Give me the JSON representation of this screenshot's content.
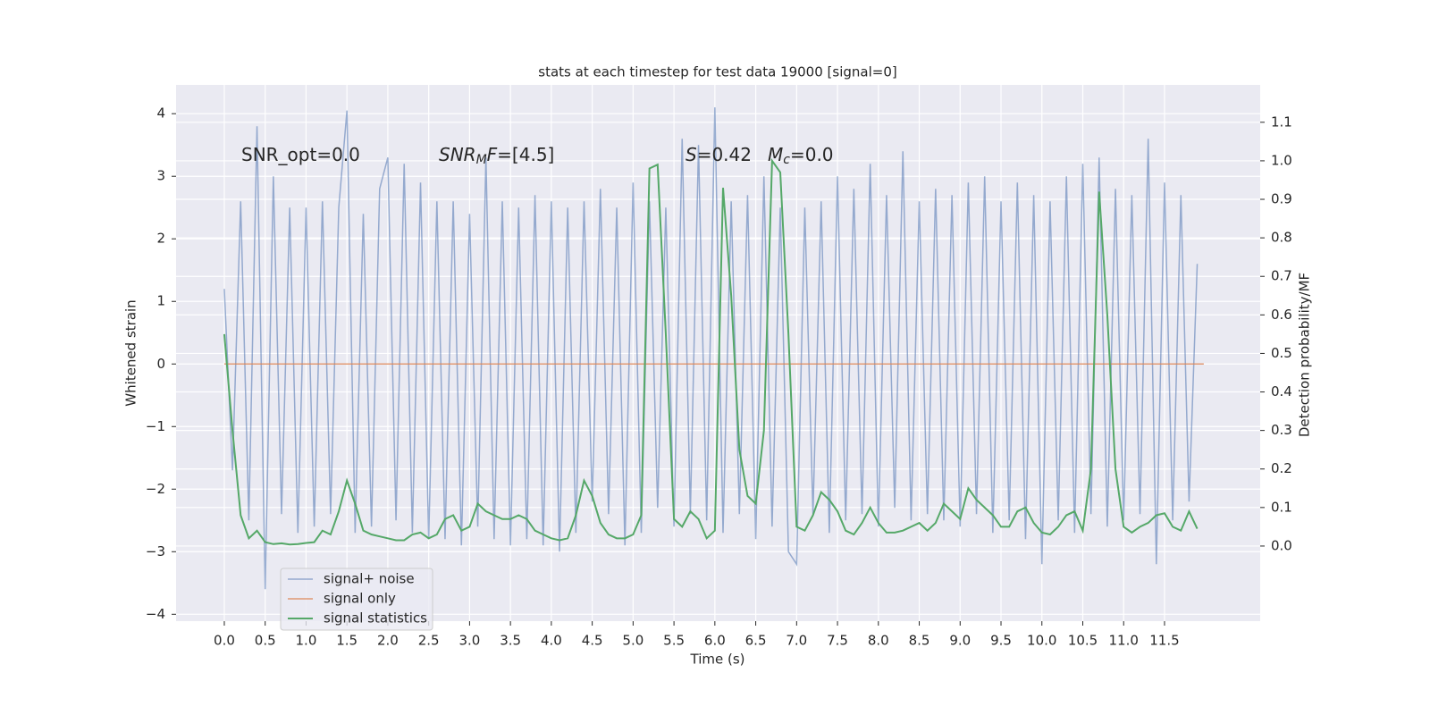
{
  "chart_data": {
    "type": "line",
    "title": "stats at each timestep for test data 19000 [signal=0]",
    "xlabel": "Time (s)",
    "ylabel": "Whitened strain",
    "y2label": "Detection probability/MF",
    "annotations": [
      [
        "SNR_opt=0.0"
      ],
      [
        "SNR",
        "M",
        "F",
        "=[4.5]"
      ],
      [
        "S",
        "=0.42"
      ],
      [
        "M",
        "c",
        "=0.0"
      ]
    ],
    "xlim": [
      -0.59,
      12.67
    ],
    "ylim": [
      -4.11,
      4.46
    ],
    "y2lim": [
      -0.195,
      1.197
    ],
    "xticks": [
      {
        "value": 0,
        "label": "0.0"
      },
      {
        "value": 0.5,
        "label": "0.5"
      },
      {
        "value": 1,
        "label": "1.0"
      },
      {
        "value": 1.5,
        "label": "1.5"
      },
      {
        "value": 2,
        "label": "2.0"
      },
      {
        "value": 2.5,
        "label": "2.5"
      },
      {
        "value": 3,
        "label": "3.0"
      },
      {
        "value": 3.5,
        "label": "3.5"
      },
      {
        "value": 4,
        "label": "4.0"
      },
      {
        "value": 4.5,
        "label": "4.5"
      },
      {
        "value": 5,
        "label": "5.0"
      },
      {
        "value": 5.5,
        "label": "5.5"
      },
      {
        "value": 6,
        "label": "6.0"
      },
      {
        "value": 6.5,
        "label": "6.5"
      },
      {
        "value": 7,
        "label": "7.0"
      },
      {
        "value": 7.5,
        "label": "7.5"
      },
      {
        "value": 8,
        "label": "8.0"
      },
      {
        "value": 8.5,
        "label": "8.5"
      },
      {
        "value": 9,
        "label": "9.0"
      },
      {
        "value": 9.5,
        "label": "9.5"
      },
      {
        "value": 10,
        "label": "10.0"
      },
      {
        "value": 10.5,
        "label": "10.5"
      },
      {
        "value": 11,
        "label": "11.0"
      },
      {
        "value": 11.5,
        "label": "11.5"
      }
    ],
    "yticks": [
      {
        "value": -4,
        "label": "−4"
      },
      {
        "value": -3,
        "label": "−3"
      },
      {
        "value": -2,
        "label": "−2"
      },
      {
        "value": -1,
        "label": "−1"
      },
      0,
      1,
      2,
      3,
      4
    ],
    "y2ticks": [
      {
        "value": 0,
        "label": "0.0"
      },
      {
        "value": 0.1,
        "label": "0.1"
      },
      {
        "value": 0.2,
        "label": "0.2"
      },
      {
        "value": 0.3,
        "label": "0.3"
      },
      {
        "value": 0.4,
        "label": "0.4"
      },
      {
        "value": 0.5,
        "label": "0.5"
      },
      {
        "value": 0.6,
        "label": "0.6"
      },
      {
        "value": 0.7,
        "label": "0.7"
      },
      {
        "value": 0.8,
        "label": "0.8"
      },
      {
        "value": 0.9,
        "label": "0.9"
      },
      {
        "value": 1.0,
        "label": "1.0"
      },
      {
        "value": 1.1,
        "label": "1.1"
      }
    ],
    "grid": true,
    "legend": "lower left",
    "series": [
      {
        "name": "signal+ noise",
        "color": "#4c72b0",
        "x": [
          0,
          0.1,
          0.2,
          0.3,
          0.4,
          0.5,
          0.6,
          0.7,
          0.8,
          0.9,
          1,
          1.1,
          1.2,
          1.3,
          1.4,
          1.5,
          1.6,
          1.7,
          1.8,
          1.9,
          2,
          2.1,
          2.2,
          2.3,
          2.4,
          2.5,
          2.6,
          2.7,
          2.8,
          2.9,
          3,
          3.1,
          3.2,
          3.3,
          3.4,
          3.5,
          3.6,
          3.7,
          3.8,
          3.9,
          4,
          4.1,
          4.2,
          4.3,
          4.4,
          4.5,
          4.6,
          4.7,
          4.8,
          4.9,
          5,
          5.1,
          5.2,
          5.3,
          5.4,
          5.5,
          5.6,
          5.7,
          5.8,
          5.9,
          6,
          6.1,
          6.2,
          6.3,
          6.4,
          6.5,
          6.6,
          6.7,
          6.8,
          6.9,
          7,
          7.1,
          7.2,
          7.3,
          7.4,
          7.5,
          7.6,
          7.7,
          7.8,
          7.9,
          8,
          8.1,
          8.2,
          8.3,
          8.4,
          8.5,
          8.6,
          8.7,
          8.8,
          8.9,
          9,
          9.1,
          9.2,
          9.3,
          9.4,
          9.5,
          9.6,
          9.7,
          9.8,
          9.9,
          10,
          10.1,
          10.2,
          10.3,
          10.4,
          10.5,
          10.6,
          10.7,
          10.8,
          10.9,
          11,
          11.1,
          11.2,
          11.3,
          11.4,
          11.5,
          11.6,
          11.7,
          11.8,
          11.9
        ],
        "values": [
          1.2,
          -1.7,
          2.6,
          -2.5,
          3.8,
          -3.6,
          3.0,
          -2.4,
          2.5,
          -2.7,
          2.5,
          -2.6,
          2.6,
          -2.4,
          2.5,
          4.05,
          -2.7,
          2.4,
          -2.6,
          2.8,
          3.3,
          -2.5,
          3.2,
          -2.7,
          2.9,
          -2.8,
          2.6,
          -2.8,
          2.6,
          -2.9,
          2.4,
          -2.6,
          3.3,
          -2.8,
          2.6,
          -2.9,
          2.5,
          -2.8,
          2.7,
          -2.9,
          2.6,
          -3.0,
          2.5,
          -2.7,
          2.6,
          -2.2,
          2.8,
          -2.4,
          2.5,
          -2.9,
          2.9,
          -2.7,
          2.6,
          -2.3,
          2.5,
          -2.6,
          3.6,
          -2.4,
          3.5,
          -2.5,
          4.1,
          -2.7,
          2.6,
          -2.4,
          2.7,
          -2.8,
          3.0,
          -2.6,
          2.5,
          -3.0,
          -3.2,
          2.5,
          -2.4,
          2.6,
          -2.7,
          3.0,
          -2.5,
          2.8,
          -2.4,
          3.2,
          -2.6,
          2.7,
          -2.3,
          3.4,
          -2.5,
          2.6,
          -2.4,
          2.8,
          -2.5,
          2.7,
          -2.6,
          2.9,
          -2.4,
          3.0,
          -2.7,
          2.6,
          -2.5,
          2.9,
          -2.8,
          2.7,
          -3.2,
          2.6,
          -2.5,
          3.0,
          -2.7,
          3.2,
          -2.4,
          3.3,
          -2.6,
          2.8,
          -2.5,
          2.7,
          -2.4,
          3.6,
          -3.2,
          2.9,
          -2.5,
          2.7,
          -2.2,
          1.6
        ]
      },
      {
        "name": "signal only",
        "color": "#dd8452",
        "x": [
          0,
          11.98
        ],
        "values": [
          0,
          0
        ]
      },
      {
        "name": "signal statistics",
        "color": "#55a868",
        "axis": "y2",
        "x": [
          0,
          0.1,
          0.2,
          0.3,
          0.4,
          0.5,
          0.6,
          0.7,
          0.8,
          0.9,
          1,
          1.1,
          1.2,
          1.3,
          1.4,
          1.5,
          1.6,
          1.7,
          1.8,
          1.9,
          2,
          2.1,
          2.2,
          2.3,
          2.4,
          2.5,
          2.6,
          2.7,
          2.8,
          2.9,
          3,
          3.1,
          3.2,
          3.3,
          3.4,
          3.5,
          3.6,
          3.7,
          3.8,
          3.9,
          4,
          4.1,
          4.2,
          4.3,
          4.4,
          4.5,
          4.6,
          4.7,
          4.8,
          4.9,
          5,
          5.1,
          5.2,
          5.3,
          5.4,
          5.5,
          5.6,
          5.7,
          5.8,
          5.9,
          6,
          6.1,
          6.2,
          6.3,
          6.4,
          6.5,
          6.6,
          6.7,
          6.8,
          6.9,
          7,
          7.1,
          7.2,
          7.3,
          7.4,
          7.5,
          7.6,
          7.7,
          7.8,
          7.9,
          8,
          8.1,
          8.2,
          8.3,
          8.4,
          8.5,
          8.6,
          8.7,
          8.8,
          8.9,
          9,
          9.1,
          9.2,
          9.3,
          9.4,
          9.5,
          9.6,
          9.7,
          9.8,
          9.9,
          10,
          10.1,
          10.2,
          10.3,
          10.4,
          10.5,
          10.6,
          10.7,
          10.8,
          10.9,
          11,
          11.1,
          11.2,
          11.3,
          11.4,
          11.5,
          11.6,
          11.7,
          11.8,
          11.9
        ],
        "values": [
          0.55,
          0.3,
          0.08,
          0.02,
          0.04,
          0.01,
          0.005,
          0.007,
          0.004,
          0.005,
          0.008,
          0.01,
          0.04,
          0.03,
          0.09,
          0.17,
          0.11,
          0.04,
          0.03,
          0.025,
          0.02,
          0.015,
          0.015,
          0.03,
          0.035,
          0.02,
          0.03,
          0.07,
          0.08,
          0.04,
          0.05,
          0.11,
          0.09,
          0.08,
          0.07,
          0.07,
          0.08,
          0.07,
          0.04,
          0.03,
          0.02,
          0.015,
          0.02,
          0.08,
          0.17,
          0.13,
          0.06,
          0.03,
          0.02,
          0.02,
          0.03,
          0.08,
          0.98,
          0.99,
          0.55,
          0.07,
          0.05,
          0.09,
          0.07,
          0.02,
          0.04,
          0.93,
          0.65,
          0.25,
          0.13,
          0.11,
          0.3,
          1.0,
          0.97,
          0.55,
          0.05,
          0.04,
          0.08,
          0.14,
          0.12,
          0.09,
          0.04,
          0.03,
          0.06,
          0.1,
          0.06,
          0.035,
          0.035,
          0.04,
          0.05,
          0.06,
          0.04,
          0.06,
          0.11,
          0.09,
          0.07,
          0.15,
          0.12,
          0.1,
          0.08,
          0.05,
          0.05,
          0.09,
          0.1,
          0.06,
          0.035,
          0.03,
          0.05,
          0.08,
          0.09,
          0.04,
          0.2,
          0.92,
          0.6,
          0.2,
          0.05,
          0.035,
          0.05,
          0.06,
          0.08,
          0.085,
          0.05,
          0.04,
          0.09,
          0.045
        ]
      }
    ]
  }
}
